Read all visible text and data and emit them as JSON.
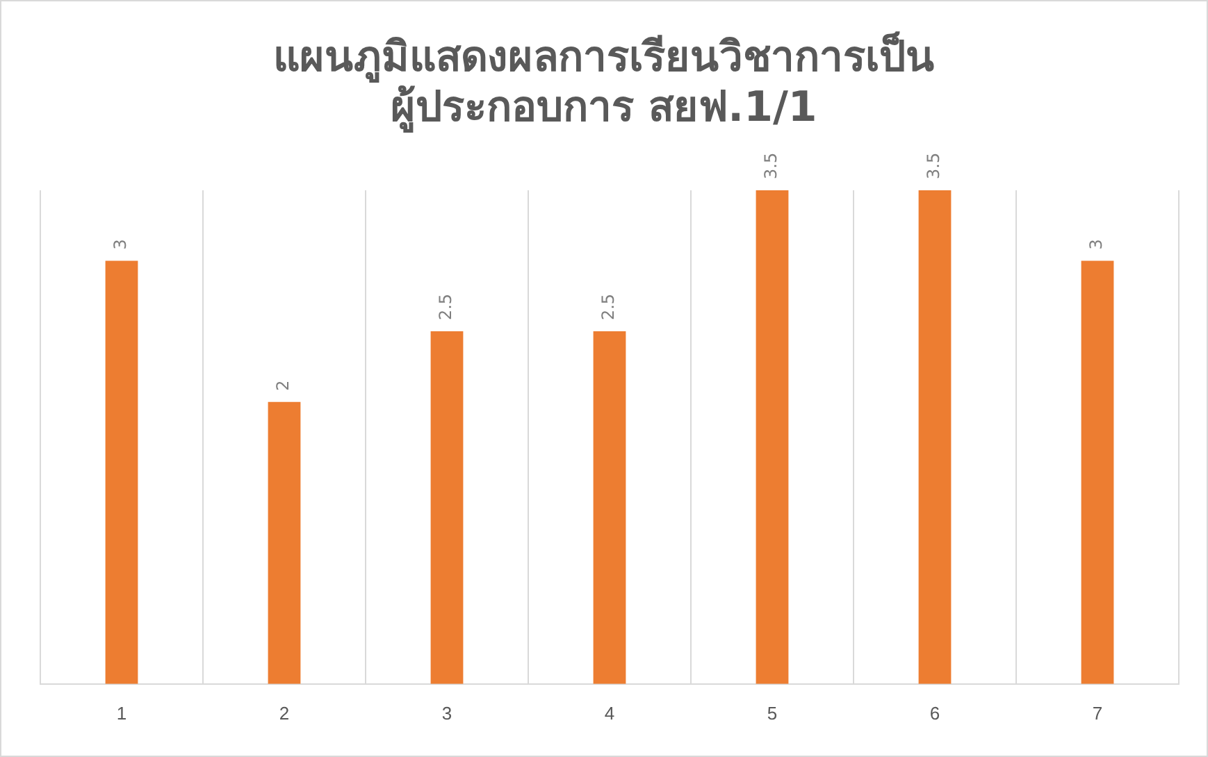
{
  "chart_data": {
    "type": "bar",
    "title": "แผนภูมิแสดงผลการเรียนวิชาการเป็น\nผู้ประกอบการ สยฟ.1/1",
    "categories": [
      "1",
      "2",
      "3",
      "4",
      "5",
      "6",
      "7"
    ],
    "values": [
      3,
      2,
      2.5,
      2.5,
      3.5,
      3.5,
      3
    ],
    "color": "#ed7d31",
    "relative": false,
    "data_labels": true,
    "grid": "x",
    "legend": false
  }
}
